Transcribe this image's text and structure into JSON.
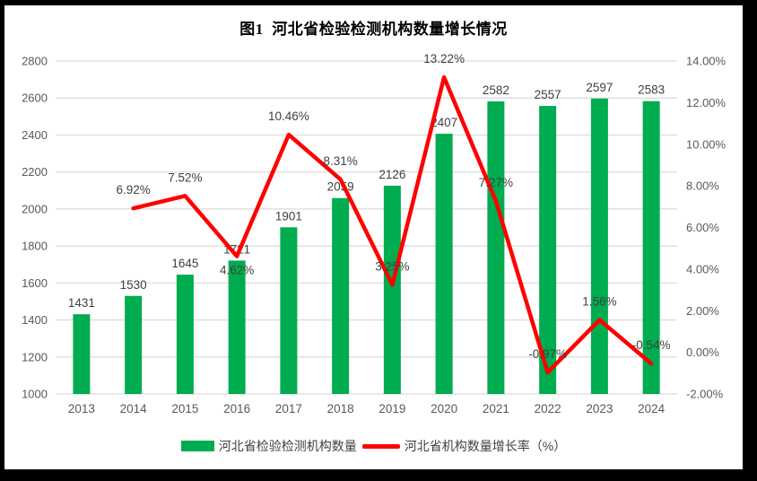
{
  "title": "图1  河北省检验检测机构数量增长情况",
  "legend": {
    "bars_label": "河北省检验检测机构数量",
    "line_label": "河北省机构数量增长率（%）"
  },
  "colors": {
    "bar": "#00AC50",
    "line": "#FF0000",
    "grid": "#D9D9D9",
    "axis_text": "#595959",
    "data_label": "#404040",
    "frame": "#000000",
    "background": "#FFFFFF"
  },
  "chart_data": {
    "type": "bar+line",
    "title": "图1  河北省检验检测机构数量增长情况",
    "categories": [
      "2013",
      "2014",
      "2015",
      "2016",
      "2017",
      "2018",
      "2019",
      "2020",
      "2021",
      "2022",
      "2023",
      "2024"
    ],
    "series": [
      {
        "name": "河北省检验检测机构数量",
        "type": "bar",
        "axis": "left",
        "color": "#00AC50",
        "values": [
          1431,
          1530,
          1645,
          1721,
          1901,
          2059,
          2126,
          2407,
          2582,
          2557,
          2597,
          2583
        ],
        "point_labels": [
          "1431",
          "1530",
          "1645",
          "1721",
          "1901",
          "2059",
          "2126",
          "2407",
          "2582",
          "2557",
          "2597",
          "2583"
        ]
      },
      {
        "name": "河北省机构数量增长率（%）",
        "type": "line",
        "axis": "right",
        "color": "#FF0000",
        "values": [
          null,
          6.92,
          7.52,
          4.62,
          10.46,
          8.31,
          3.25,
          13.22,
          7.27,
          -0.97,
          1.56,
          -0.54
        ],
        "point_labels": [
          null,
          "6.92%",
          "7.52%",
          "4.62%",
          "10.46%",
          "8.31%",
          "3.25%",
          "13.22%",
          "7.27%",
          "-0.97%",
          "1.56%",
          "-0.54%"
        ]
      }
    ],
    "left_axis": {
      "min": 1000,
      "max": 2800,
      "step": 200,
      "tick_labels": [
        "1000",
        "1200",
        "1400",
        "1600",
        "1800",
        "2000",
        "2200",
        "2400",
        "2600",
        "2800"
      ]
    },
    "right_axis": {
      "min": -2,
      "max": 14,
      "step": 2,
      "tick_labels": [
        "-2.00%",
        "0.00%",
        "2.00%",
        "4.00%",
        "6.00%",
        "8.00%",
        "10.00%",
        "12.00%",
        "14.00%"
      ]
    },
    "grid": true,
    "legend_position": "bottom",
    "label_layout": {
      "below_point_indices": [
        3
      ]
    }
  }
}
